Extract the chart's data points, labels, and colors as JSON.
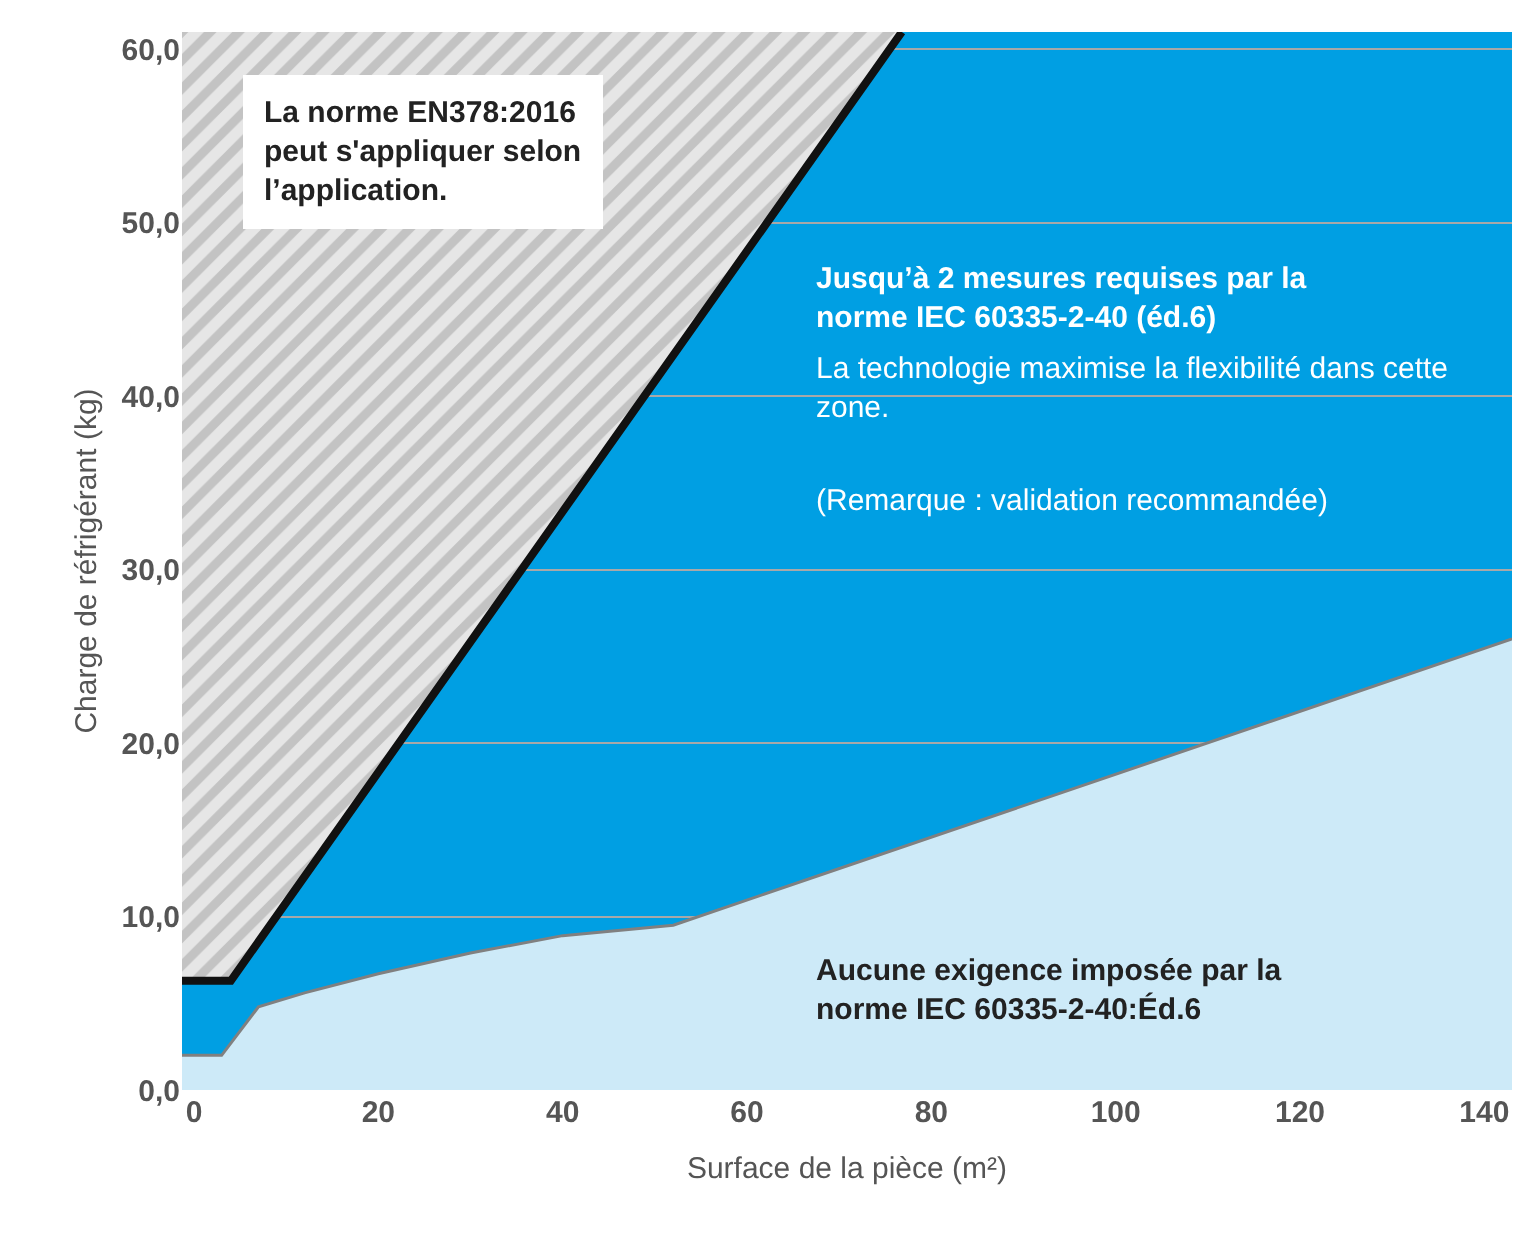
{
  "chart_data": {
    "type": "area",
    "xlabel": "Surface de la pièce (m²)",
    "ylabel": "Charge de réfrigérant (kg)",
    "xlim": [
      -1.3,
      143
    ],
    "ylim": [
      0,
      61
    ],
    "xticks": [
      0,
      20,
      40,
      60,
      80,
      100,
      120,
      140
    ],
    "yticks": [
      {
        "value": 0,
        "label": "0,0"
      },
      {
        "value": 10,
        "label": "10,0"
      },
      {
        "value": 20,
        "label": "20,0"
      },
      {
        "value": 30,
        "label": "30,0"
      },
      {
        "value": 40,
        "label": "40,0"
      },
      {
        "value": 50,
        "label": "50,0"
      },
      {
        "value": 60,
        "label": "60,0"
      }
    ],
    "grid": "y",
    "bands": [
      {
        "axis": "y",
        "from": 0,
        "to": 61,
        "color": "#009fe3"
      }
    ],
    "series": [
      {
        "color": "#cdeaf8",
        "x": [
          -1.3,
          3,
          7,
          12,
          20,
          30,
          40,
          52,
          143
        ],
        "values": [
          2,
          2,
          4.8,
          5.6,
          6.7,
          7.9,
          8.9,
          9.5,
          26
        ]
      },
      {
        "type": "line",
        "color": "#111111",
        "x": [
          -1.3,
          4,
          76.8
        ],
        "values": [
          6.3,
          6.3,
          61
        ],
        "lower": [
          6.3,
          6.3,
          61
        ],
        "upper": [
          61,
          61,
          61
        ]
      }
    ],
    "annotations": [
      "La norme EN378:2016\npeut s'appliquer selon\nl’application.",
      "Jusqu’à 2 mesures requises par la\nnorme IEC 60335-2-40 (éd.6)",
      "La technologie maximise la flexibilité dans cette\nzone.",
      "(Remarque : validation recommandée)",
      "Aucune exigence imposée par la\nnorme IEC 60335-2-40:Éd.6"
    ]
  }
}
